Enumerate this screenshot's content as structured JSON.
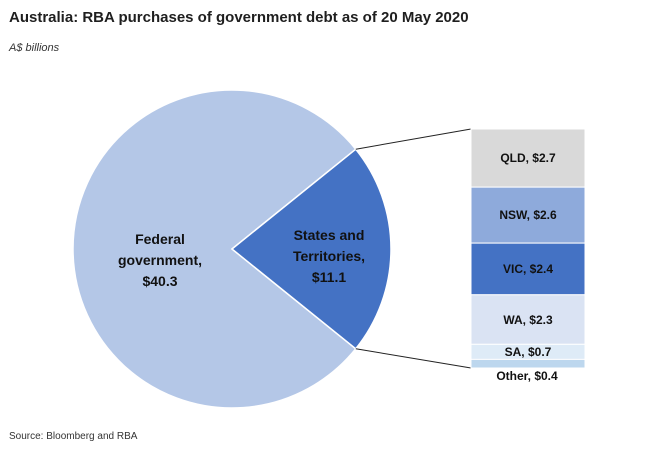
{
  "title": "Australia: RBA purchases of government debt as of 20 May 2020",
  "subtitle": "A$ billions",
  "source": "Source: Bloomberg and RBA",
  "chart_data": {
    "type": "pie",
    "title": "Australia: RBA purchases of government debt as of 20 May 2020",
    "unit": "A$ billions",
    "slices": [
      {
        "label_lines": [
          "Federal",
          "government,",
          "$40.3"
        ],
        "value": 40.3,
        "color": "#b4c7e7",
        "text_color": "#111111"
      },
      {
        "label_lines": [
          "States and",
          "Territories,",
          "$11.1"
        ],
        "value": 11.1,
        "color": "#4472c4",
        "text_color": "#111111"
      }
    ],
    "breakdown": {
      "of": "States and Territories",
      "segments": [
        {
          "label": "QLD, $2.7",
          "value": 2.7,
          "color": "#d9d9d9"
        },
        {
          "label": "NSW, $2.6",
          "value": 2.6,
          "color": "#8eaadb"
        },
        {
          "label": "VIC, $2.4",
          "value": 2.4,
          "color": "#4472c4"
        },
        {
          "label": "WA, $2.3",
          "value": 2.3,
          "color": "#dae3f3"
        },
        {
          "label": "SA, $0.7",
          "value": 0.7,
          "color": "#deebf7"
        },
        {
          "label": "Other, $0.4",
          "value": 0.4,
          "color": "#bdd7ee"
        }
      ]
    }
  }
}
